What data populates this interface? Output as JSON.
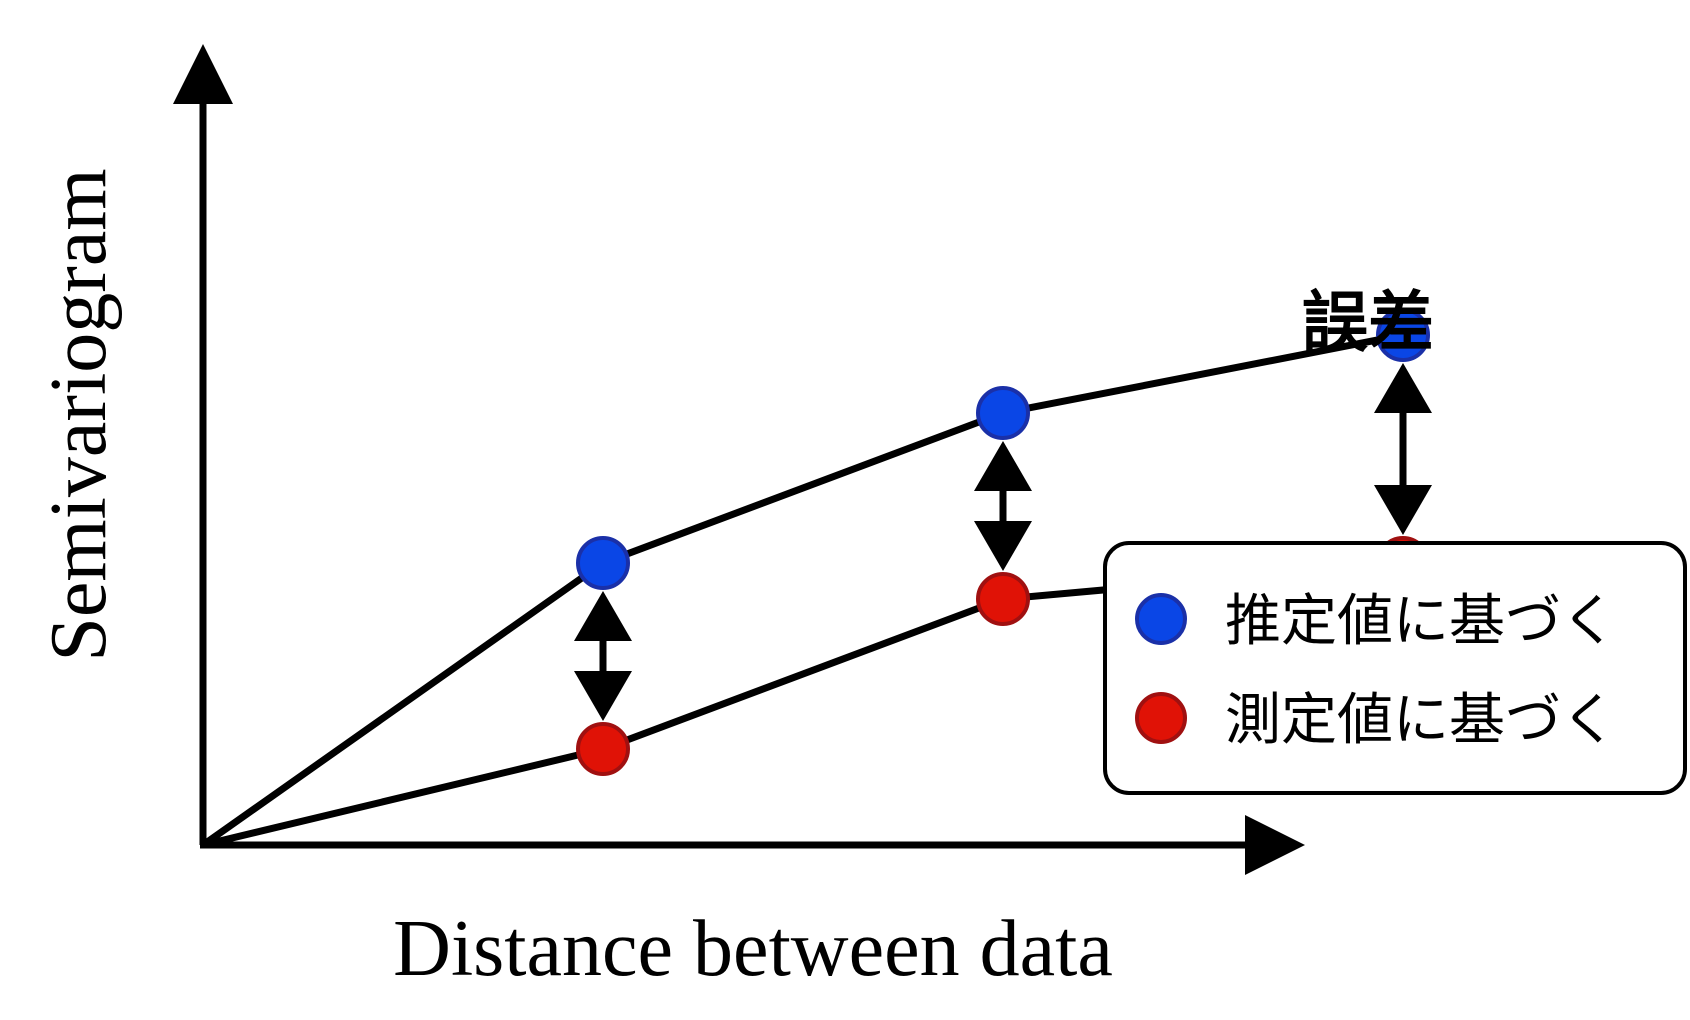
{
  "chart_data": {
    "type": "line",
    "title": "",
    "xlabel": "Distance between data",
    "ylabel": "Semivariogram",
    "x": [
      0,
      1,
      2,
      3
    ],
    "xlim": [
      0,
      4.3
    ],
    "ylim": [
      0,
      10
    ],
    "grid": false,
    "ticks": false,
    "legend_position": "bottom-right",
    "series": [
      {
        "name": "推定値に基づく",
        "color": "#0a46e6",
        "edge_color": "#1a30a8",
        "values": [
          0,
          4.7,
          7.2,
          8.5
        ]
      },
      {
        "name": "測定値に基づく",
        "color": "#e01206",
        "edge_color": "#a01010",
        "values": [
          0,
          1.6,
          4.1,
          4.7
        ]
      }
    ],
    "annotations": [
      {
        "text": "誤差",
        "description": "double-headed arrows between estimated and measured values"
      }
    ],
    "error_arrows_at": [
      1,
      2,
      3
    ]
  }
}
